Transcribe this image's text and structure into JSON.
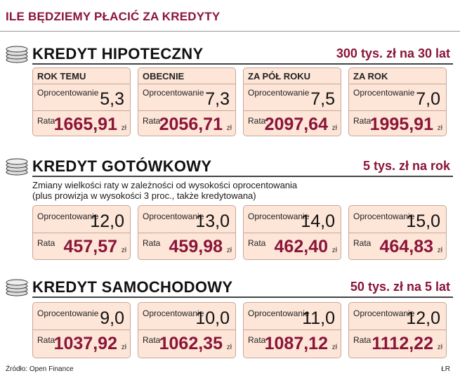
{
  "title": "ILE BĘDZIEMY PŁACIĆ ZA KREDYTY",
  "colors": {
    "accent": "#8a1538",
    "card_bg": "#fde5d8",
    "card_border": "#c9a898"
  },
  "sections": [
    {
      "name": "KREDYT HIPOTECZNY",
      "right_text": "300 tys. zł na 30 lat",
      "cards": [
        {
          "header": "ROK TEMU",
          "op_label": "Oprocentowanie",
          "op_value": "5,3",
          "rata_label": "Rata",
          "rata_value": "1665,91",
          "unit": "zł"
        },
        {
          "header": "OBECNIE",
          "op_label": "Oprocentowanie",
          "op_value": "7,3",
          "rata_label": "Rata",
          "rata_value": "2056,71",
          "unit": "zł"
        },
        {
          "header": "ZA PÓŁ ROKU",
          "op_label": "Oprocentowanie",
          "op_value": "7,5",
          "rata_label": "Rata",
          "rata_value": "2097,64",
          "unit": "zł"
        },
        {
          "header": "ZA ROK",
          "op_label": "Oprocentowanie",
          "op_value": "7,0",
          "rata_label": "Rata",
          "rata_value": "1995,91",
          "unit": "zł"
        }
      ]
    },
    {
      "name": "KREDYT GOTÓWKOWY",
      "right_text": "5 tys. zł na rok",
      "description_line1": "Zmiany wielkości raty w zależności od wysokości oprocentowania",
      "description_line2": "(plus prowizja w wysokości 3 proc., także kredytowana)",
      "cards": [
        {
          "op_label": "Oprocentowanie",
          "op_value": "12,0",
          "rata_label": "Rata",
          "rata_value": "457,57",
          "unit": "zł"
        },
        {
          "op_label": "Oprocentowanie",
          "op_value": "13,0",
          "rata_label": "Rata",
          "rata_value": "459,98",
          "unit": "zł"
        },
        {
          "op_label": "Oprocentowanie",
          "op_value": "14,0",
          "rata_label": "Rata",
          "rata_value": "462,40",
          "unit": "zł"
        },
        {
          "op_label": "Oprocentowanie",
          "op_value": "15,0",
          "rata_label": "Rata",
          "rata_value": "464,83",
          "unit": "zł"
        }
      ]
    },
    {
      "name": "KREDYT SAMOCHODOWY",
      "right_text": "50 tys. zł na 5 lat",
      "cards": [
        {
          "op_label": "Oprocentowanie",
          "op_value": "9,0",
          "rata_label": "Rata",
          "rata_value": "1037,92",
          "unit": "zł"
        },
        {
          "op_label": "Oprocentowanie",
          "op_value": "10,0",
          "rata_label": "Rata",
          "rata_value": "1062,35",
          "unit": "zł"
        },
        {
          "op_label": "Oprocentowanie",
          "op_value": "11,0",
          "rata_label": "Rata",
          "rata_value": "1087,12",
          "unit": "zł"
        },
        {
          "op_label": "Oprocentowanie",
          "op_value": "12,0",
          "rata_label": "Rata",
          "rata_value": "1112,22",
          "unit": "zł"
        }
      ]
    }
  ],
  "footer": {
    "source": "Źródło: Open Finance",
    "credit": "ŁR"
  }
}
